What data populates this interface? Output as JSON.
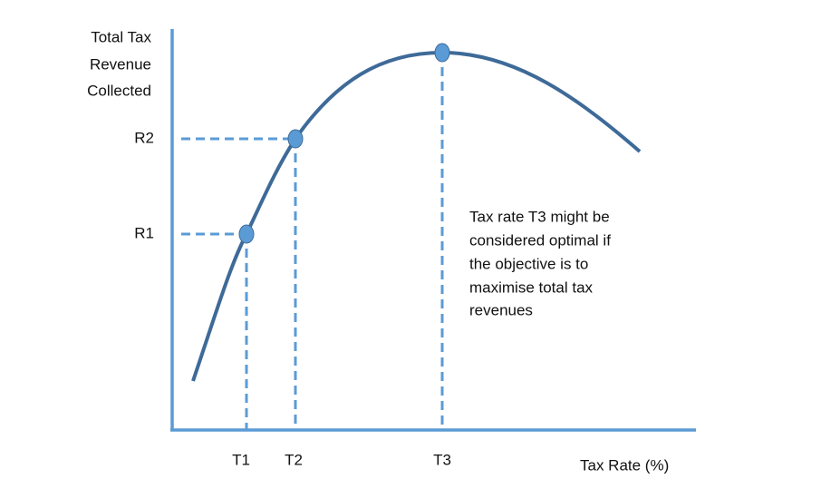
{
  "y_axis_label": [
    "Total Tax",
    "Revenue",
    "Collected"
  ],
  "x_axis_label": "Tax Rate (%)",
  "y_markers": [
    "R1",
    "R2"
  ],
  "x_markers": [
    "T1",
    "T2",
    "T3"
  ],
  "annotation": [
    "Tax rate T3 might be",
    "considered optimal if",
    "the objective is to",
    "maximise total tax",
    "revenues"
  ]
}
